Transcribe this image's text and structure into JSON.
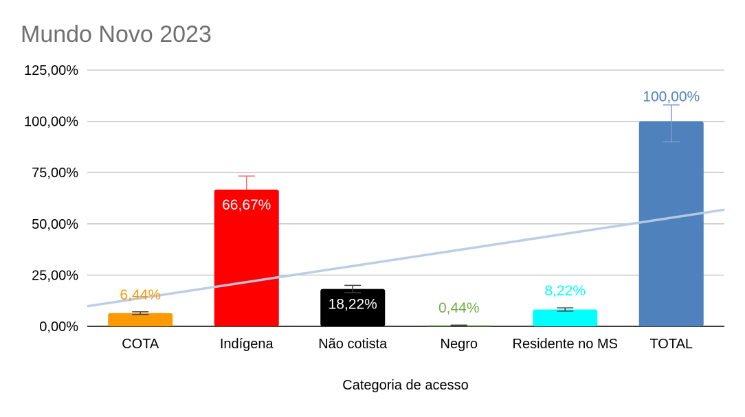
{
  "chart_data": {
    "type": "bar",
    "title": "Mundo Novo 2023",
    "xlabel": "Categoria de acesso",
    "ylabel": "",
    "ylim": [
      0,
      125
    ],
    "yticks": [
      "0,00%",
      "25,00%",
      "50,00%",
      "75,00%",
      "100,00%",
      "125,00%"
    ],
    "ytick_values": [
      0,
      25,
      50,
      75,
      100,
      125
    ],
    "grid": true,
    "legend": "none",
    "categories": [
      "COTA",
      "Indígena",
      "Não cotista",
      "Negro",
      "Residente no MS",
      "TOTAL"
    ],
    "values": [
      6.44,
      66.67,
      18.22,
      0.44,
      8.22,
      100.0
    ],
    "value_labels": [
      "6,44%",
      "66,67%",
      "18,22%",
      "0,44%",
      "8,22%",
      "100,00%"
    ],
    "colors": [
      "#FF9900",
      "#FF0000",
      "#000000",
      "#70AD47",
      "#00FFFF",
      "#4F81BD"
    ],
    "label_colors": [
      "#FF9900",
      "#FFFFFF",
      "#FFFFFF",
      "#70AD47",
      "#00FFFF",
      "#4F81BD"
    ],
    "label_inside": [
      false,
      true,
      true,
      false,
      false,
      false
    ],
    "error_bars": [
      {
        "low": 5.8,
        "high": 7.1
      },
      {
        "low": 66.67,
        "high": 73.3
      },
      {
        "low": 16.4,
        "high": 20.0
      },
      {
        "low": 0.3,
        "high": 0.6
      },
      {
        "low": 7.4,
        "high": 9.0
      },
      {
        "low": 90.0,
        "high": 108.0
      }
    ],
    "trendline": {
      "type": "linear",
      "color": "#B8CCE4"
    }
  }
}
